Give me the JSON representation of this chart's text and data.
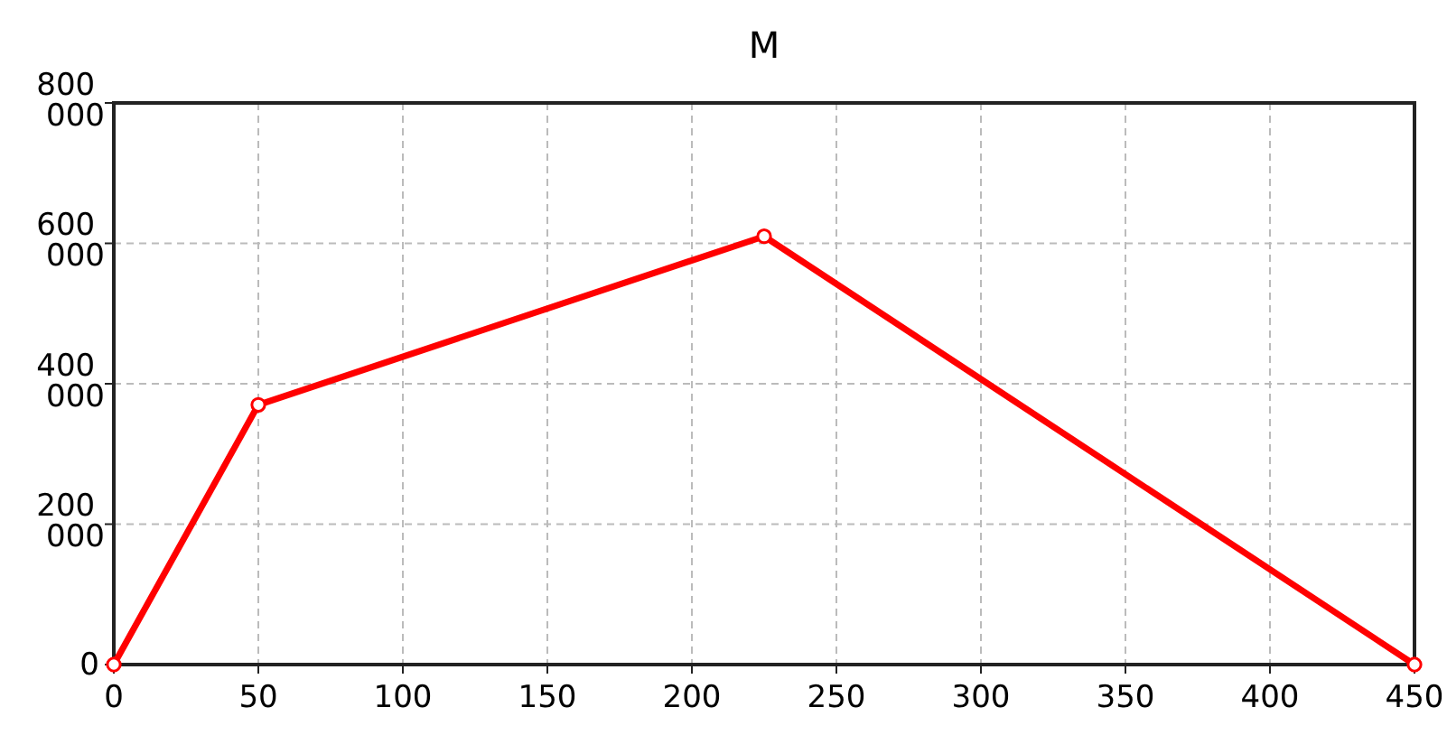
{
  "chart_data": {
    "type": "line",
    "title": "M",
    "x": [
      0,
      50,
      225,
      450
    ],
    "series": [
      {
        "color": "#ff0000",
        "values": [
          0,
          370000,
          610000,
          0
        ]
      }
    ],
    "xlim": [
      0,
      450
    ],
    "xticks": [
      0,
      50,
      100,
      150,
      200,
      250,
      300,
      350,
      400,
      450
    ],
    "ylim": [
      0,
      800000
    ],
    "yticks": [
      {
        "value": 0,
        "label": "0"
      },
      {
        "value": 200000,
        "label": "200 000"
      },
      {
        "value": 400000,
        "label": "400 000"
      },
      {
        "value": 600000,
        "label": "600 000"
      },
      {
        "value": 800000,
        "label": "800 000"
      }
    ],
    "grid": true,
    "marker": "circle",
    "line_style": "solid"
  }
}
